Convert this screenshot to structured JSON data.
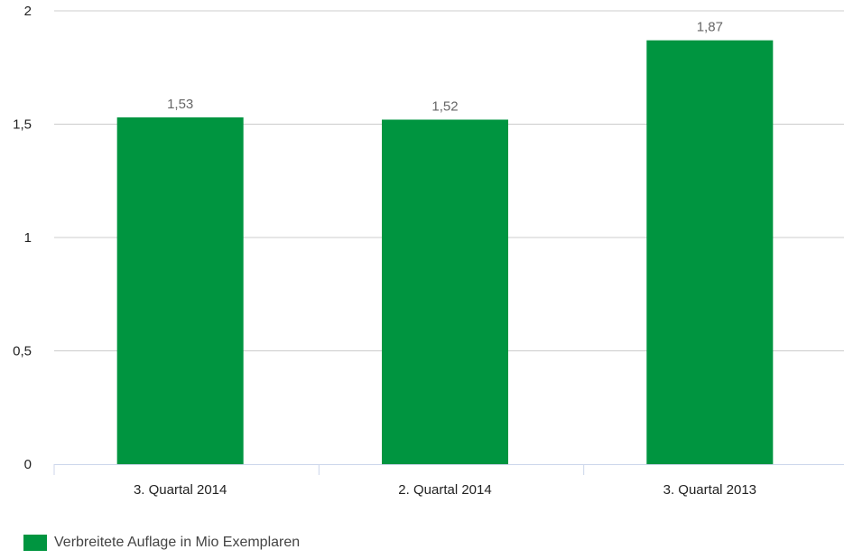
{
  "chart_data": {
    "type": "bar",
    "categories": [
      "3. Quartal 2014",
      "2. Quartal 2014",
      "3. Quartal 2013"
    ],
    "series": [
      {
        "name": "Verbreitete Auflage in Mio Exemplaren",
        "values": [
          1.53,
          1.52,
          1.87
        ],
        "value_labels": [
          "1,53",
          "1,52",
          "1,87"
        ],
        "color": "#009540"
      }
    ],
    "ylim": [
      0,
      2
    ],
    "yticks": [
      0,
      0.5,
      1,
      1.5,
      2
    ],
    "ytick_labels": [
      "0",
      "0,5",
      "1",
      "1,5",
      "2"
    ],
    "title": "",
    "xlabel": "",
    "ylabel": "",
    "grid": true,
    "legend_position": "bottom-left",
    "colors": {
      "grid": "#cccccc",
      "axis": "#ccd6eb"
    }
  }
}
